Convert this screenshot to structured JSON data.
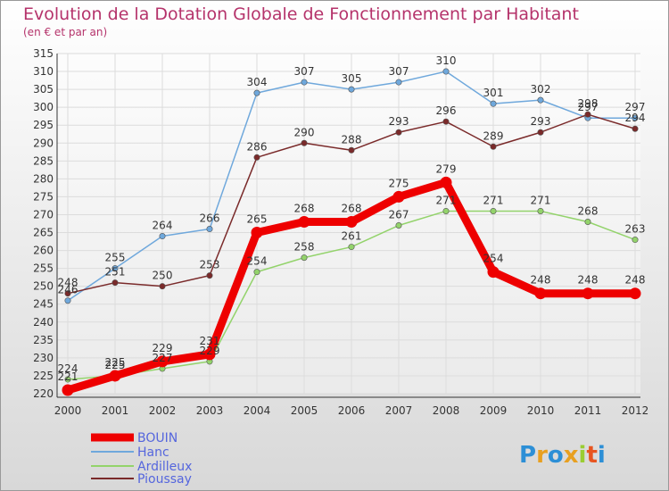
{
  "chart_data": {
    "type": "line",
    "title": "Evolution de la Dotation Globale de Fonctionnement par Habitant",
    "subtitle": "(en € et par an)",
    "x": [
      "2000",
      "2001",
      "2002",
      "2003",
      "2004",
      "2005",
      "2006",
      "2007",
      "2008",
      "2009",
      "2010",
      "2011",
      "2012"
    ],
    "ylim": [
      220,
      315
    ],
    "yticks": [
      220,
      225,
      230,
      235,
      240,
      245,
      250,
      255,
      260,
      265,
      270,
      275,
      280,
      285,
      290,
      295,
      300,
      305,
      310,
      315
    ],
    "series": [
      {
        "name": "BOUIN",
        "color": "#ee0000",
        "values": [
          221,
          225,
          229,
          231,
          265,
          268,
          268,
          275,
          279,
          254,
          248,
          248,
          248
        ]
      },
      {
        "name": "Hanc",
        "color": "#6fa8dc",
        "values": [
          246,
          255,
          264,
          266,
          304,
          307,
          305,
          307,
          310,
          301,
          302,
          297,
          297
        ]
      },
      {
        "name": "Ardilleux",
        "color": "#93d36b",
        "values": [
          224,
          225,
          227,
          229,
          254,
          258,
          261,
          267,
          271,
          271,
          271,
          268,
          263
        ]
      },
      {
        "name": "Pioussay",
        "color": "#7a2a2a",
        "values": [
          248,
          251,
          250,
          253,
          286,
          290,
          288,
          293,
          296,
          289,
          293,
          298,
          294
        ]
      }
    ],
    "legend_position": "bottom-left"
  },
  "brand": {
    "text": "Proxiti",
    "letters": [
      "P",
      "r",
      "o",
      "x",
      "i",
      "t",
      "i"
    ],
    "colors": [
      "#2c8fd6",
      "#e8a020",
      "#2c8fd6",
      "#e8a020",
      "#9acd32",
      "#e85520",
      "#2c8fd6"
    ]
  }
}
